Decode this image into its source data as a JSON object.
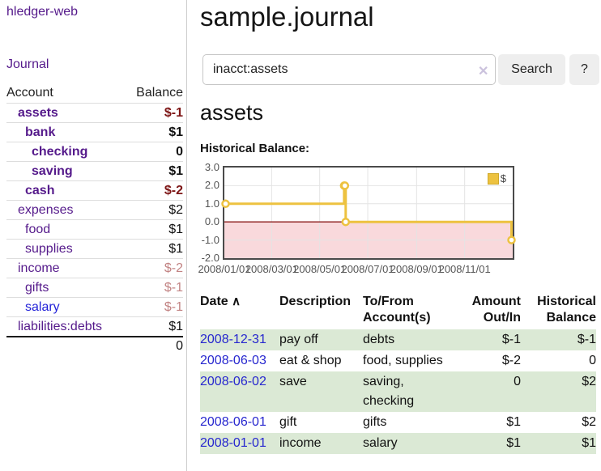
{
  "app": {
    "brand": "hledger-web",
    "nav_journal": "Journal"
  },
  "sidebar": {
    "header": {
      "account": "Account",
      "balance": "Balance"
    },
    "accounts": [
      {
        "name": "assets",
        "balance": "$-1"
      },
      {
        "name": "bank",
        "balance": "$1"
      },
      {
        "name": "checking",
        "balance": "0"
      },
      {
        "name": "saving",
        "balance": "$1"
      },
      {
        "name": "cash",
        "balance": "$-2"
      },
      {
        "name": "expenses",
        "balance": "$2"
      },
      {
        "name": "food",
        "balance": "$1"
      },
      {
        "name": "supplies",
        "balance": "$1"
      },
      {
        "name": "income",
        "balance": "$-2"
      },
      {
        "name": "gifts",
        "balance": "$-1"
      },
      {
        "name": "salary",
        "balance": "$-1"
      },
      {
        "name": "liabilities:debts",
        "balance": "$1"
      }
    ],
    "total": "0"
  },
  "header": {
    "title": "sample.journal"
  },
  "search": {
    "value": "inacct:assets",
    "clear_label": "✕",
    "button_label": "Search",
    "help_label": "?"
  },
  "account_page": {
    "heading": "assets",
    "chart_label": "Historical Balance:"
  },
  "chart_data": {
    "type": "line",
    "style": "steps",
    "title": "Historical Balance",
    "series": [
      {
        "name": "$",
        "color": "#edc240",
        "points": [
          [
            "2008-01-01",
            1
          ],
          [
            "2008-06-01",
            2
          ],
          [
            "2008-06-02",
            2
          ],
          [
            "2008-06-03",
            0
          ],
          [
            "2008-12-31",
            -1
          ]
        ]
      }
    ],
    "ylim": [
      -2,
      3
    ],
    "yticks": [
      3.0,
      2.0,
      1.0,
      0.0,
      -1.0,
      -2.0
    ],
    "xrange": [
      "2008-01-01",
      "2009-01-01"
    ],
    "xticks": [
      {
        "label": "2008/01/01",
        "date": "2008-01-01"
      },
      {
        "label": "2008/03/01",
        "date": "2008-03-01"
      },
      {
        "label": "2008/05/01",
        "date": "2008-05-01"
      },
      {
        "label": "2008/07/01",
        "date": "2008-07-01"
      },
      {
        "label": "2008/09/01",
        "date": "2008-09-01"
      },
      {
        "label": "2008/11/01",
        "date": "2008-11-01"
      }
    ],
    "grid_color": "#e4e4e4",
    "negative_region_color": "#f9d9dc",
    "zero_line_color": "#8b1b1b",
    "legend_position": "top-right"
  },
  "register": {
    "sort_icon": "∧",
    "headers": {
      "date": "Date",
      "description": "Description",
      "accounts": "To/From Account(s)",
      "amount": "Amount Out/In",
      "historical": "Historical Balance"
    },
    "rows": [
      {
        "date": "2008-12-31",
        "description": "pay off",
        "accounts": "debts",
        "amount": "$-1",
        "historical": "$-1"
      },
      {
        "date": "2008-06-03",
        "description": "eat & shop",
        "accounts": "food, supplies",
        "amount": "$-2",
        "historical": "0"
      },
      {
        "date": "2008-06-02",
        "description": "save",
        "accounts": "saving, checking",
        "amount": "0",
        "historical": "$2"
      },
      {
        "date": "2008-06-01",
        "description": "gift",
        "accounts": "gifts",
        "amount": "$1",
        "historical": "$2"
      },
      {
        "date": "2008-01-01",
        "description": "income",
        "accounts": "salary",
        "amount": "$1",
        "historical": "$1"
      }
    ]
  }
}
